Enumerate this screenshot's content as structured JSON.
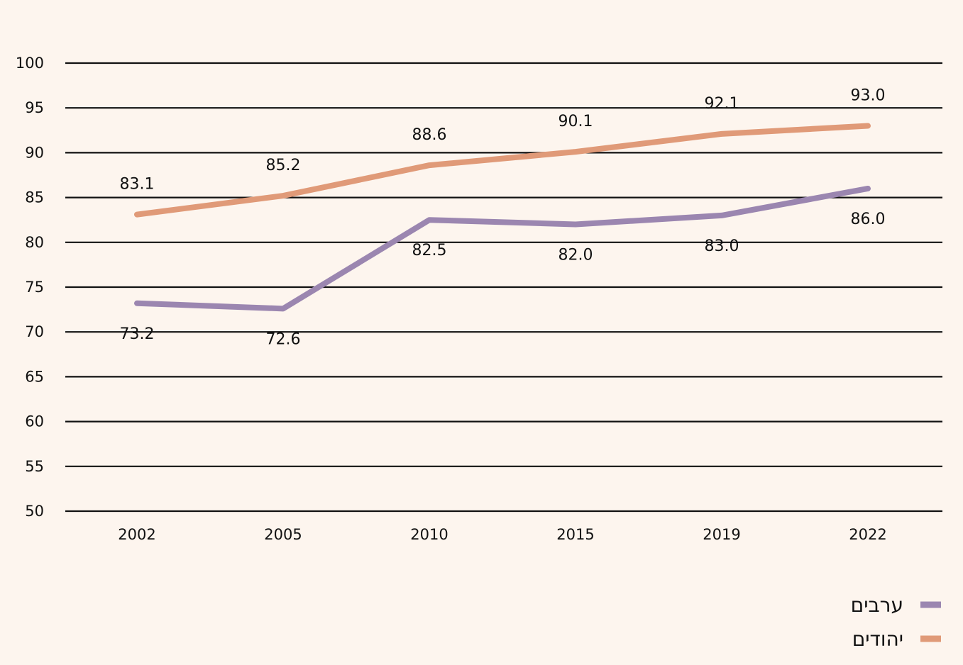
{
  "chart_data": {
    "type": "line",
    "title": "",
    "xlabel": "",
    "ylabel": "",
    "categories": [
      "2002",
      "2005",
      "2010",
      "2015",
      "2019",
      "2022"
    ],
    "ylim": [
      50,
      100
    ],
    "yticks": [
      50,
      55,
      60,
      65,
      70,
      75,
      80,
      85,
      90,
      95,
      100
    ],
    "grid": true,
    "legend_position": "bottom-right",
    "series": [
      {
        "name": "יהודים",
        "color": "#e09a78",
        "values": [
          83.1,
          85.2,
          88.6,
          90.1,
          92.1,
          93.0
        ],
        "labels": [
          "83.1",
          "85.2",
          "88.6",
          "90.1",
          "92.1",
          "93.0"
        ],
        "label_position": "above"
      },
      {
        "name": "ערבים",
        "color": "#9b86b0",
        "values": [
          73.2,
          72.6,
          82.5,
          82.0,
          83.0,
          86.0
        ],
        "labels": [
          "73.2",
          "72.6",
          "82.5",
          "82.0",
          "83.0",
          "86.0"
        ],
        "label_position": "below"
      }
    ],
    "legend_order": [
      "ערבים",
      "יהודים"
    ]
  },
  "colors": {
    "background": "#fdf5ee",
    "gridline": "#111111",
    "text": "#111111"
  }
}
